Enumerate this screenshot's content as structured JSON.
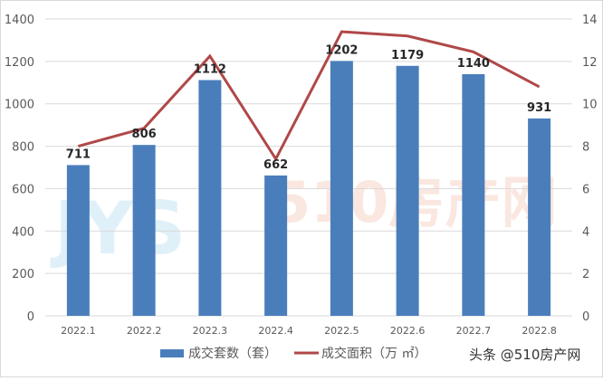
{
  "chart_data": {
    "type": "bar+line",
    "categories": [
      "2022.1",
      "2022.2",
      "2022.3",
      "2022.4",
      "2022.5",
      "2022.6",
      "2022.7",
      "2022.8"
    ],
    "series": [
      {
        "name": "成交套数（套）",
        "type": "bar",
        "axis": "left",
        "color": "#4a7ebb",
        "values": [
          711,
          806,
          1112,
          662,
          1202,
          1179,
          1140,
          931
        ]
      },
      {
        "name": "成交面积（万 ㎡）",
        "type": "line",
        "axis": "right",
        "color": "#b04848",
        "values": [
          8.0,
          8.85,
          12.25,
          7.4,
          13.4,
          13.2,
          12.45,
          10.8
        ]
      }
    ],
    "ylim_left": [
      0,
      1400
    ],
    "yticks_left": [
      "0",
      "200",
      "400",
      "600",
      "800",
      "1000",
      "1200",
      "1400"
    ],
    "ylim_right": [
      0,
      14
    ],
    "yticks_right": [
      "0",
      "2",
      "4",
      "6",
      "8",
      "10",
      "12",
      "14"
    ],
    "grid": true,
    "legend": "bottom",
    "data_labels": [
      "711",
      "806",
      "1112",
      "662",
      "1202",
      "1179",
      "1140",
      "931"
    ]
  },
  "watermark": "510房产网 WWW.JYS10.COM",
  "credit": "头条 @510房产网"
}
